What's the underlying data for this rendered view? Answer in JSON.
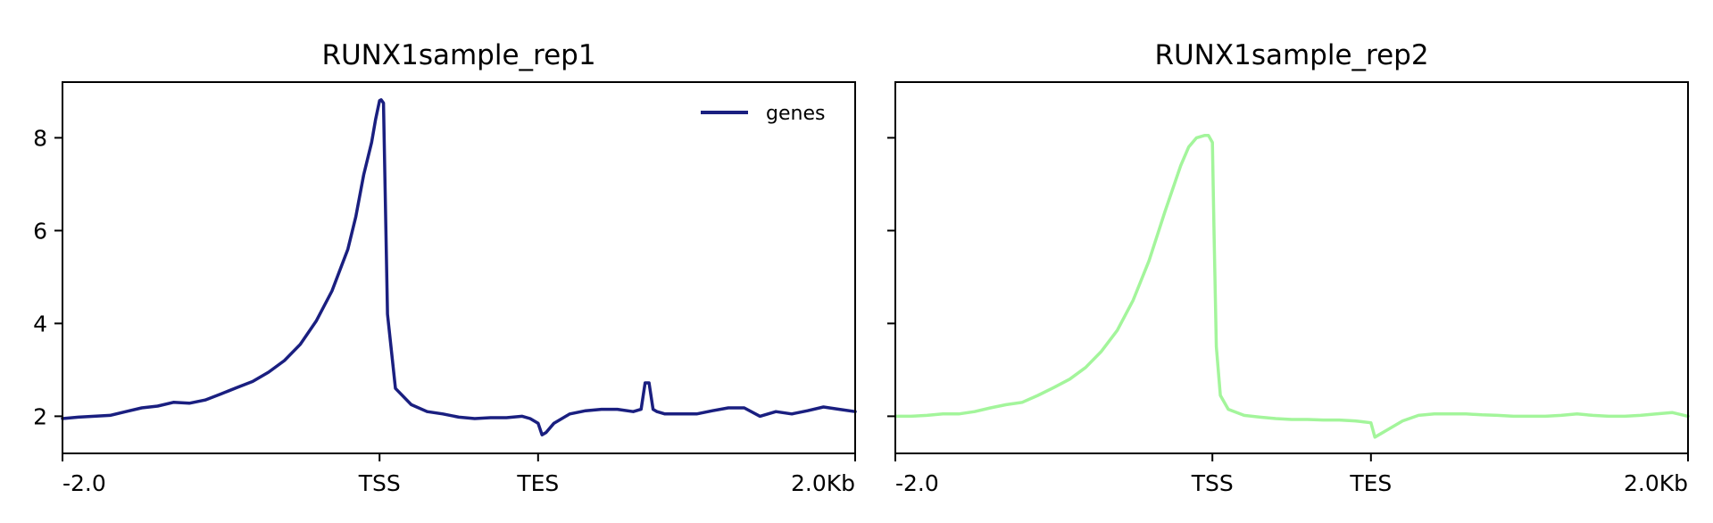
{
  "chart_data": [
    {
      "type": "line",
      "title": "RUNX1sample_rep1",
      "xlabel": "",
      "ylabel": "",
      "x_ticks": [
        {
          "pos": 0,
          "label": "-2.0"
        },
        {
          "pos": 0.4,
          "label": "TSS"
        },
        {
          "pos": 0.6,
          "label": "TES"
        },
        {
          "pos": 1.0,
          "label": "2.0Kb"
        }
      ],
      "y_ticks": [
        2,
        4,
        6,
        8
      ],
      "ylim": [
        1.2,
        9.2
      ],
      "grid": false,
      "legend": {
        "placement": "top-right",
        "entries": [
          "genes"
        ]
      },
      "series": [
        {
          "name": "genes",
          "color": "#1a1f80",
          "x": [
            0,
            0.02,
            0.04,
            0.06,
            0.08,
            0.1,
            0.12,
            0.14,
            0.16,
            0.18,
            0.2,
            0.22,
            0.24,
            0.26,
            0.28,
            0.3,
            0.32,
            0.34,
            0.36,
            0.37,
            0.38,
            0.39,
            0.395,
            0.4,
            0.402,
            0.405,
            0.41,
            0.42,
            0.44,
            0.46,
            0.48,
            0.5,
            0.52,
            0.54,
            0.56,
            0.58,
            0.59,
            0.6,
            0.605,
            0.61,
            0.62,
            0.64,
            0.66,
            0.68,
            0.7,
            0.72,
            0.73,
            0.735,
            0.74,
            0.745,
            0.75,
            0.76,
            0.78,
            0.8,
            0.82,
            0.84,
            0.86,
            0.88,
            0.9,
            0.92,
            0.94,
            0.96,
            0.98,
            1.0
          ],
          "values": [
            1.95,
            1.98,
            2.0,
            2.02,
            2.1,
            2.18,
            2.22,
            2.3,
            2.28,
            2.35,
            2.48,
            2.62,
            2.75,
            2.95,
            3.2,
            3.55,
            4.05,
            4.7,
            5.6,
            6.3,
            7.2,
            7.9,
            8.4,
            8.8,
            8.82,
            8.75,
            4.2,
            2.6,
            2.25,
            2.1,
            2.05,
            1.98,
            1.95,
            1.97,
            1.97,
            2.0,
            1.95,
            1.85,
            1.6,
            1.65,
            1.85,
            2.05,
            2.12,
            2.15,
            2.15,
            2.1,
            2.15,
            2.72,
            2.72,
            2.15,
            2.1,
            2.05,
            2.05,
            2.05,
            2.12,
            2.18,
            2.18,
            2.0,
            2.1,
            2.05,
            2.12,
            2.2,
            2.15,
            2.1
          ]
        }
      ]
    },
    {
      "type": "line",
      "title": "RUNX1sample_rep2",
      "xlabel": "",
      "ylabel": "",
      "x_ticks": [
        {
          "pos": 0,
          "label": "-2.0"
        },
        {
          "pos": 0.4,
          "label": "TSS"
        },
        {
          "pos": 0.6,
          "label": "TES"
        },
        {
          "pos": 1.0,
          "label": "2.0Kb"
        }
      ],
      "y_ticks": [
        2,
        4,
        6,
        8
      ],
      "ylim": [
        1.2,
        9.2
      ],
      "grid": false,
      "series": [
        {
          "color": "#a3f59b",
          "x": [
            0,
            0.02,
            0.04,
            0.06,
            0.08,
            0.1,
            0.12,
            0.14,
            0.16,
            0.18,
            0.2,
            0.22,
            0.24,
            0.26,
            0.28,
            0.3,
            0.32,
            0.34,
            0.36,
            0.37,
            0.38,
            0.39,
            0.395,
            0.4,
            0.402,
            0.405,
            0.41,
            0.42,
            0.44,
            0.46,
            0.48,
            0.5,
            0.52,
            0.54,
            0.56,
            0.58,
            0.59,
            0.6,
            0.605,
            0.61,
            0.62,
            0.64,
            0.66,
            0.68,
            0.7,
            0.72,
            0.74,
            0.76,
            0.78,
            0.8,
            0.82,
            0.84,
            0.86,
            0.88,
            0.9,
            0.92,
            0.94,
            0.96,
            0.98,
            1.0
          ],
          "values": [
            2.0,
            2.0,
            2.02,
            2.05,
            2.05,
            2.1,
            2.18,
            2.25,
            2.3,
            2.45,
            2.62,
            2.8,
            3.05,
            3.4,
            3.85,
            4.5,
            5.35,
            6.4,
            7.4,
            7.8,
            8.0,
            8.05,
            8.05,
            7.9,
            6.0,
            3.5,
            2.45,
            2.15,
            2.02,
            1.98,
            1.95,
            1.93,
            1.93,
            1.92,
            1.92,
            1.9,
            1.88,
            1.86,
            1.55,
            1.6,
            1.7,
            1.9,
            2.02,
            2.05,
            2.05,
            2.05,
            2.03,
            2.02,
            2.0,
            2.0,
            2.0,
            2.02,
            2.05,
            2.02,
            2.0,
            2.0,
            2.02,
            2.05,
            2.08,
            2.0
          ]
        }
      ]
    }
  ]
}
